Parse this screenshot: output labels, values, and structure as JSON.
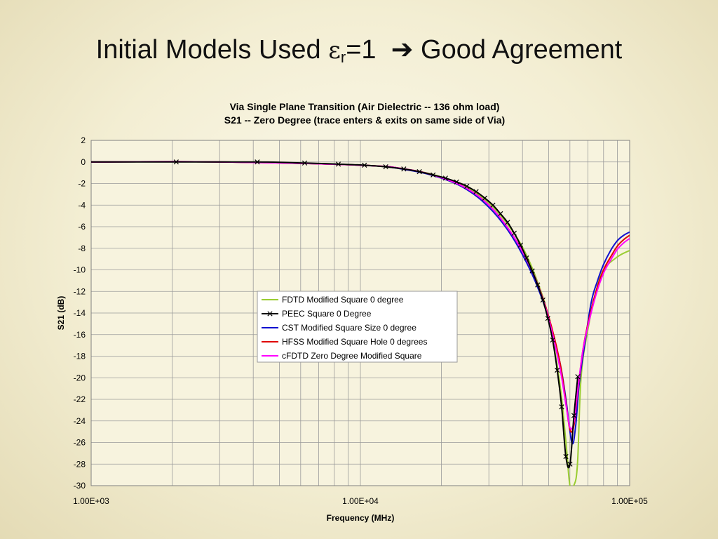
{
  "slide": {
    "title_prefix": "Initial Models Used ",
    "epsilon_symbol": "ε",
    "epsilon_sub": "r",
    "title_equals": "=1",
    "arrow": "➔",
    "title_suffix": "Good Agreement"
  },
  "chart_data": {
    "type": "line",
    "title_lines": [
      "Via Single Plane Transition  (Air Dielectric -- 136 ohm load)",
      "S21 -- Zero Degree (trace enters & exits on same side of Via)"
    ],
    "xlabel": "Frequency (MHz)",
    "ylabel": "S21 (dB)",
    "xscale": "log",
    "xlim": [
      1000,
      100000
    ],
    "ylim": [
      -30,
      2
    ],
    "x_tick_values": [
      1000,
      10000,
      100000
    ],
    "x_tick_labels": [
      "1.00E+03",
      "1.00E+04",
      "1.00E+05"
    ],
    "y_tick_values": [
      2,
      0,
      -2,
      -4,
      -6,
      -8,
      -10,
      -12,
      -14,
      -16,
      -18,
      -20,
      -22,
      -24,
      -26,
      -28,
      -30
    ],
    "y_tick_labels": [
      "2",
      "0",
      "-2",
      "-4",
      "-6",
      "-8",
      "-10",
      "-12",
      "-14",
      "-16",
      "-18",
      "-20",
      "-22",
      "-24",
      "-26",
      "-28",
      "-30"
    ],
    "grid": true,
    "legend_position": "center",
    "series": [
      {
        "name": "FDTD Modified Square 0 degree",
        "color": "#9acd32",
        "marker": "none",
        "x": [
          1000,
          3000,
          10000,
          15000,
          20000,
          25000,
          30000,
          35000,
          40000,
          45000,
          50000,
          55000,
          58000,
          60000,
          62000,
          64000,
          66000,
          70000,
          75000,
          80000,
          90000,
          100000
        ],
        "y": [
          0,
          0,
          -0.3,
          -0.7,
          -1.4,
          -2.4,
          -3.8,
          -5.7,
          -7.9,
          -10.8,
          -14.5,
          -20.5,
          -26,
          -30,
          -30,
          -28,
          -20,
          -15.5,
          -12,
          -10,
          -8.8,
          -8.2
        ]
      },
      {
        "name": "PEEC Square 0 Degree",
        "color": "#000000",
        "marker": "x",
        "x": [
          1000,
          2070,
          4140,
          6210,
          8280,
          10350,
          12420,
          14490,
          16560,
          18630,
          20700,
          22770,
          24840,
          26910,
          28980,
          31050,
          33120,
          35190,
          37260,
          39330,
          41400,
          43470,
          45540,
          47610,
          49680,
          51750,
          53820,
          55890,
          57960,
          60030,
          62100,
          64170
        ],
        "y": [
          0,
          0,
          0,
          -0.1,
          -0.2,
          -0.3,
          -0.45,
          -0.65,
          -0.9,
          -1.2,
          -1.5,
          -1.85,
          -2.25,
          -2.75,
          -3.35,
          -4,
          -4.8,
          -5.6,
          -6.6,
          -7.7,
          -8.9,
          -10.1,
          -11.4,
          -12.8,
          -14.5,
          -16.5,
          -19.3,
          -22.7,
          -27.3,
          -28,
          -23.5,
          -19.9
        ]
      },
      {
        "name": "CST Modified Square Size 0 degree",
        "color": "#1010d0",
        "marker": "none",
        "x": [
          1000,
          3000,
          10000,
          15000,
          20000,
          25000,
          30000,
          35000,
          40000,
          45000,
          50000,
          55000,
          58000,
          61000,
          63000,
          65000,
          68000,
          72000,
          76000,
          80000,
          85000,
          90000,
          95000,
          100000
        ],
        "y": [
          0,
          0,
          -0.3,
          -0.75,
          -1.5,
          -2.6,
          -4.2,
          -6.2,
          -8.6,
          -11.3,
          -14.5,
          -18.5,
          -22,
          -26,
          -24.5,
          -20.5,
          -17,
          -13,
          -11,
          -9.5,
          -8.2,
          -7.3,
          -6.8,
          -6.5
        ]
      },
      {
        "name": "HFSS Modified Square Hole 0 degrees",
        "color": "#e00000",
        "marker": "none",
        "x": [
          1000,
          3000,
          10000,
          15000,
          20000,
          25000,
          30000,
          35000,
          40000,
          45000,
          50000,
          55000,
          58000,
          60000,
          62000,
          64000,
          67000,
          70000,
          75000,
          80000,
          85000,
          90000,
          95000,
          100000
        ],
        "y": [
          0,
          0,
          -0.3,
          -0.7,
          -1.45,
          -2.5,
          -4,
          -6,
          -8.3,
          -11,
          -14.3,
          -18.5,
          -22.3,
          -24.8,
          -24.5,
          -21.5,
          -17.5,
          -15,
          -12,
          -10,
          -8.8,
          -7.8,
          -7.2,
          -6.8
        ]
      },
      {
        "name": "cFDTD Zero Degree Modified Square",
        "color": "#ff00ff",
        "marker": "none",
        "x": [
          1000,
          3000,
          10000,
          15000,
          20000,
          25000,
          30000,
          35000,
          40000,
          45000,
          50000,
          55000,
          58000,
          60000,
          62000,
          64000,
          67000,
          70000,
          75000,
          80000,
          85000,
          90000,
          95000,
          100000
        ],
        "y": [
          0,
          0,
          -0.3,
          -0.7,
          -1.45,
          -2.5,
          -4,
          -6,
          -8.3,
          -11,
          -14.5,
          -19,
          -22.5,
          -24.6,
          -24.2,
          -21.3,
          -17.5,
          -15.2,
          -12.3,
          -10.3,
          -9.1,
          -8.1,
          -7.5,
          -7.1
        ]
      }
    ]
  }
}
